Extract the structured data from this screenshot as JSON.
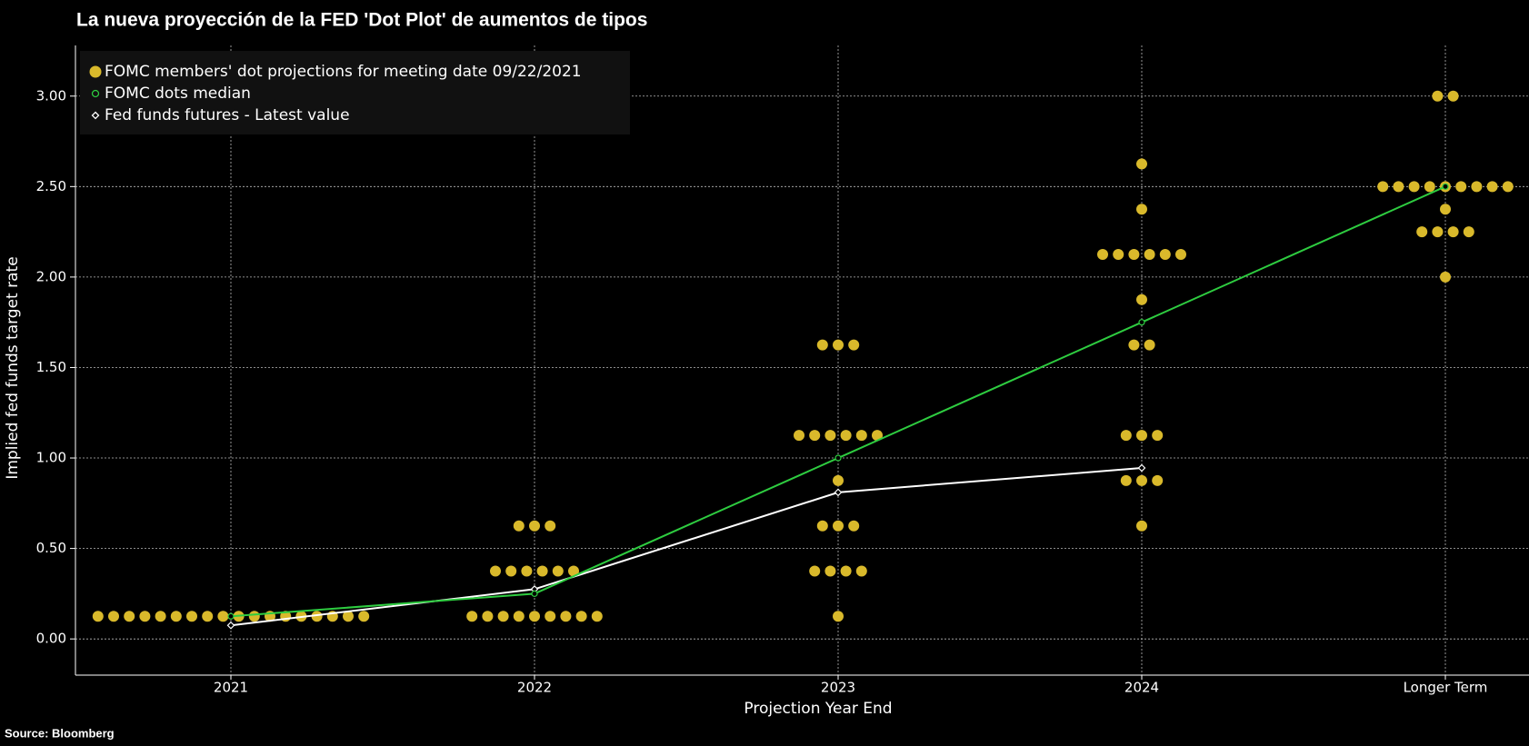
{
  "chart_data": {
    "type": "dot_plot",
    "title": "La nueva proyección de la FED 'Dot Plot' de aumentos de tipos",
    "source": "Source: Bloomberg",
    "x_label": "Projection Year End",
    "y_label": "Implied fed funds target rate",
    "categories": [
      "2021",
      "2022",
      "2023",
      "2024",
      "Longer Term"
    ],
    "ylim": [
      -0.2,
      3.28
    ],
    "yticks": [
      {
        "value": 0,
        "label": "0.00"
      },
      {
        "value": 0.5,
        "label": "0.50"
      },
      {
        "value": 1,
        "label": "1.00"
      },
      {
        "value": 1.5,
        "label": "1.50"
      },
      {
        "value": 2,
        "label": "2.00"
      },
      {
        "value": 2.5,
        "label": "2.50"
      },
      {
        "value": 3,
        "label": "3.00"
      }
    ],
    "grid": true,
    "legend": "top-left",
    "series": [
      {
        "name": "FOMC members' dot projections for meeting date 09/22/2021",
        "color": "#d9b92b",
        "values": [
          [
            0.125,
            0.125,
            0.125,
            0.125,
            0.125,
            0.125,
            0.125,
            0.125,
            0.125,
            0.125,
            0.125,
            0.125,
            0.125,
            0.125,
            0.125,
            0.125,
            0.125,
            0.125
          ],
          [
            0.125,
            0.125,
            0.125,
            0.125,
            0.125,
            0.125,
            0.125,
            0.125,
            0.125,
            0.375,
            0.375,
            0.375,
            0.375,
            0.375,
            0.375,
            0.625,
            0.625,
            0.625
          ],
          [
            0.125,
            0.375,
            0.375,
            0.375,
            0.375,
            0.625,
            0.625,
            0.625,
            0.875,
            1.125,
            1.125,
            1.125,
            1.125,
            1.125,
            1.125,
            1.625,
            1.625,
            1.625
          ],
          [
            0.625,
            0.875,
            0.875,
            0.875,
            1.125,
            1.125,
            1.125,
            1.625,
            1.625,
            1.875,
            2.125,
            2.125,
            2.125,
            2.125,
            2.125,
            2.125,
            2.375,
            2.625
          ],
          [
            2.0,
            2.25,
            2.25,
            2.25,
            2.25,
            2.375,
            2.5,
            2.5,
            2.5,
            2.5,
            2.5,
            2.5,
            2.5,
            2.5,
            2.5,
            3.0,
            3.0
          ]
        ]
      },
      {
        "name": "FOMC dots median",
        "color": "#2ecc40",
        "values": [
          0.125,
          0.25,
          1.0,
          1.75,
          2.5
        ]
      },
      {
        "name": "Fed funds futures - Latest value",
        "color": "#ffffff",
        "values": [
          0.075,
          0.275,
          0.81,
          0.945,
          null
        ]
      }
    ]
  }
}
